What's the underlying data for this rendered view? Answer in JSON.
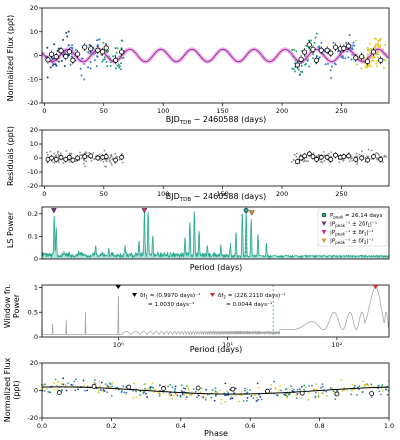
{
  "chart_data": [
    {
      "id": "flux",
      "type": "scatter",
      "xlabel": "BJD",
      "xlabel_sub": "TDB",
      "xlabel_tail": " − 2460588 (days)",
      "ylabel": "Normalized Flux (ppt)",
      "xlim": [
        -2,
        290
      ],
      "ylim": [
        -20,
        20
      ],
      "xticks": [
        0,
        50,
        100,
        150,
        200,
        250
      ],
      "yticks": [
        -20,
        -10,
        0,
        10,
        20
      ],
      "model": {
        "type": "sinusoid",
        "period": 26.14,
        "amplitude": 2.6,
        "phase_offset": 0.5,
        "color": "#9b2a9b",
        "band_color": "#e27de2"
      },
      "binned": {
        "x": [
          3,
          6,
          10,
          14,
          18,
          21,
          24,
          28,
          34,
          39,
          45,
          49,
          52,
          60,
          65,
          213,
          216,
          219,
          223,
          226,
          229,
          233,
          238,
          241,
          245,
          249,
          252,
          256,
          262,
          267,
          272,
          277,
          283
        ],
        "y": [
          -1.8,
          0.5,
          -0.5,
          2.0,
          -0.4,
          1.6,
          -2.0,
          0.6,
          3.5,
          2.8,
          2.2,
          1.6,
          3.2,
          -2.0,
          1.5,
          -4.0,
          -1.6,
          1.4,
          4.5,
          2.6,
          -2.0,
          2.2,
          2.2,
          1.0,
          3.5,
          2.8,
          3.0,
          4.0,
          -1.0,
          -0.5,
          -2.5,
          1.5,
          -2.0
        ]
      },
      "colors": [
        "#1a3e8c",
        "#3a7bd5",
        "#2a9e7e",
        "#b9d43a",
        "#f0c830"
      ]
    },
    {
      "id": "residuals",
      "type": "scatter",
      "xlabel": "BJD",
      "xlabel_sub": "TDB",
      "xlabel_tail": " − 2460588 (days)",
      "ylabel": "Residuals (ppt)",
      "xlim": [
        -2,
        290
      ],
      "ylim": [
        -20,
        20
      ],
      "xticks": [
        0,
        50,
        100,
        150,
        200,
        250
      ],
      "yticks": [
        -20,
        -10,
        0,
        10,
        20
      ],
      "binned": {
        "x": [
          3,
          6,
          10,
          14,
          18,
          21,
          24,
          28,
          34,
          39,
          45,
          49,
          52,
          60,
          65,
          213,
          216,
          219,
          223,
          226,
          229,
          233,
          238,
          241,
          245,
          249,
          252,
          256,
          262,
          267,
          272,
          277,
          283
        ],
        "y": [
          -1.0,
          0.0,
          -1.0,
          0.5,
          -1.0,
          0.5,
          -1.5,
          0.0,
          1.0,
          1.5,
          0.0,
          0.5,
          1.0,
          -1.5,
          0.5,
          -2.5,
          0.0,
          1.5,
          3.0,
          1.0,
          -1.0,
          0.5,
          0.5,
          -1.0,
          2.0,
          0.5,
          1.0,
          1.5,
          -1.0,
          0.0,
          -1.5,
          1.0,
          -1.0
        ]
      },
      "point_color": "#8a8a8a"
    },
    {
      "id": "ls",
      "type": "line",
      "xlabel": "Period (days)",
      "ylabel": "LS Power",
      "xscale": "log",
      "xlim": [
        0.8,
        300
      ],
      "ylim": [
        0,
        0.23
      ],
      "yticks": [
        0,
        0.1,
        0.2
      ],
      "color": "#27a88e",
      "peaks": [
        0.985,
        1.02,
        1.5,
        2.0,
        2.5,
        3.3,
        4.2,
        4.6,
        4.9,
        5.3,
        9.2,
        10.0,
        10.8,
        11.7,
        13.5,
        17,
        20,
        22,
        24.5,
        26.14,
        28.5,
        32,
        37
      ],
      "peak_heights": [
        0.19,
        0.14,
        0.03,
        0.05,
        0.04,
        0.05,
        0.08,
        0.2,
        0.21,
        0.1,
        0.09,
        0.15,
        0.21,
        0.12,
        0.05,
        0.05,
        0.06,
        0.12,
        0.21,
        0.21,
        0.18,
        0.11,
        0.07
      ],
      "markers": [
        {
          "x": 26.14,
          "y": 0.215,
          "label": "P",
          "sub": "peak",
          "tail": " = 26.14 days",
          "shape": "circle",
          "color": "#27a88e"
        },
        {
          "x": 0.98,
          "y": 0.215,
          "label": "|P",
          "sub": "peak",
          "tail": "⁻¹ ± 2δf",
          "tail2": "1",
          "tail3": "|⁻¹",
          "shape": "tri-down",
          "color": "#7b2d8e"
        },
        {
          "x": 4.6,
          "y": 0.215,
          "label": "|P",
          "sub": "peak",
          "tail": "⁻¹ ± δf",
          "tail2": "1",
          "tail3": "|⁻¹",
          "shape": "tri-down",
          "color": "#d63384"
        },
        {
          "x": 28.8,
          "y": 0.205,
          "label": "|P",
          "sub": "peak",
          "tail": "⁻¹ ± δf",
          "tail2": "2",
          "tail3": "|⁻¹",
          "shape": "tri-down",
          "color": "#e98e2d"
        }
      ]
    },
    {
      "id": "window",
      "type": "line",
      "xlabel": "Period (days)",
      "ylabel": "Window fn.\nPower",
      "xscale": "log",
      "xlim": [
        0.2,
        300
      ],
      "ylim": [
        0,
        1.05
      ],
      "xticks": [
        1,
        10,
        100
      ],
      "xtick_labels": [
        "10⁰",
        "10¹",
        "10²"
      ],
      "yticks": [
        0,
        0.5,
        1.0
      ],
      "color": "#a8a8a8",
      "vline_x": 26.14,
      "annotations": [
        {
          "marker_color": "#000000",
          "x": 0.997,
          "line1": "δf",
          "sub1": "1",
          "tail1": " = (0.9970 days)⁻¹",
          "line2": "= 1.0030 days⁻¹"
        },
        {
          "marker_color": "#d62728",
          "x": 226.21,
          "line1": "δf",
          "sub1": "2",
          "tail1": " = (226.2110 days)⁻¹",
          "line2": "= 0.0044 days⁻¹"
        }
      ]
    },
    {
      "id": "phase",
      "type": "scatter",
      "xlabel": "Phase",
      "ylabel": "Normalized Flux\n(ppt)",
      "xlim": [
        0.0,
        1.0
      ],
      "ylim": [
        -20,
        20
      ],
      "xticks": [
        0.0,
        0.2,
        0.4,
        0.6,
        0.8,
        1.0
      ],
      "xtick_labels": [
        "0.0",
        "0.2",
        "0.4",
        "0.6",
        "0.8",
        "1.0"
      ],
      "yticks": [
        -20,
        0,
        20
      ],
      "model": {
        "type": "sinusoid",
        "amplitude": 2.6,
        "phase_offset": 0.2,
        "color": "#000000"
      },
      "binned": {
        "x": [
          0.05,
          0.15,
          0.25,
          0.35,
          0.45,
          0.55,
          0.65,
          0.75,
          0.85,
          0.95
        ],
        "y": [
          -1.5,
          3.0,
          2.5,
          1.5,
          1.8,
          1.0,
          -0.5,
          -2.0,
          -2.5,
          -2.2
        ]
      },
      "colors": [
        "#1a3e8c",
        "#3a7bd5",
        "#2a9e7e",
        "#b9d43a",
        "#f0c830"
      ]
    }
  ]
}
